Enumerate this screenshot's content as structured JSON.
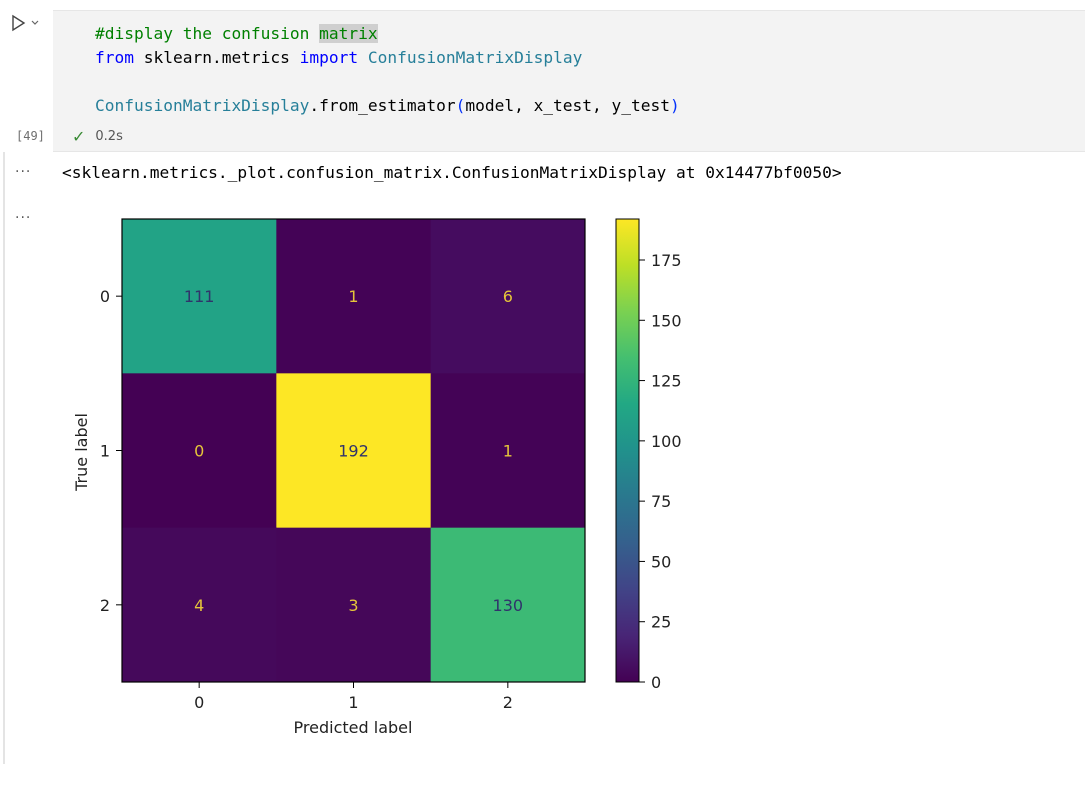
{
  "cell": {
    "run_icon": "play-icon",
    "dropdown_icon": "chevron-down-icon",
    "code": {
      "line1": "#display the confusion ",
      "line1_hl": "matrix",
      "line2_kw1": "from",
      "line2_mod": " sklearn.metrics ",
      "line2_kw2": "import",
      "line2_sp": " ",
      "line2_cls": "ConfusionMatrixDisplay",
      "line4_cls": "ConfusionMatrixDisplay",
      "line4_method": ".from_estimator",
      "line4_open": "(",
      "line4_args": "model, x_test, y_test",
      "line4_close": ")"
    },
    "execution_count": "[49]",
    "status_icon": "check-icon",
    "duration": "0.2s"
  },
  "output": {
    "more_label": "···",
    "repr_text": "<sklearn.metrics._plot.confusion_matrix.ConfusionMatrixDisplay at 0x14477bf0050>"
  },
  "chart_data": {
    "type": "heatmap",
    "colormap": "viridis",
    "xlabel": "Predicted label",
    "ylabel": "True label",
    "x_ticks": [
      "0",
      "1",
      "2"
    ],
    "y_ticks": [
      "0",
      "1",
      "2"
    ],
    "matrix": [
      [
        111,
        1,
        6
      ],
      [
        0,
        192,
        1
      ],
      [
        4,
        3,
        130
      ]
    ],
    "colorbar": {
      "min": 0,
      "max": 192,
      "ticks": [
        0,
        25,
        50,
        75,
        100,
        125,
        150,
        175
      ]
    }
  }
}
